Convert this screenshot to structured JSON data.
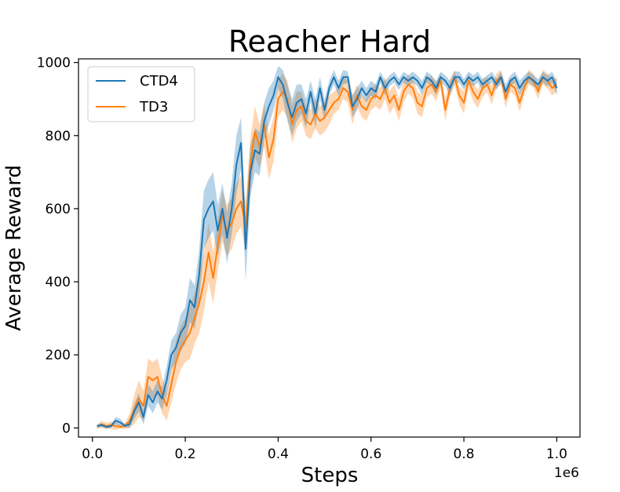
{
  "chart_data": {
    "type": "line",
    "title": "Reacher Hard",
    "xlabel": "Steps",
    "ylabel": "Average Reward",
    "x_offset_label": "1e6",
    "xlim": [
      -0.03,
      1.05
    ],
    "ylim": [
      -25,
      1010
    ],
    "x_ticks": [
      0.0,
      0.2,
      0.4,
      0.6,
      0.8,
      1.0
    ],
    "x_tick_labels": [
      "0.0",
      "0.2",
      "0.4",
      "0.6",
      "0.8",
      "1.0"
    ],
    "y_ticks": [
      0,
      200,
      400,
      600,
      800,
      1000
    ],
    "y_tick_labels": [
      "0",
      "200",
      "400",
      "600",
      "800",
      "1000"
    ],
    "grid": false,
    "legend_position": "top-left",
    "x": [
      0.01,
      0.02,
      0.03,
      0.04,
      0.05,
      0.06,
      0.07,
      0.08,
      0.09,
      0.1,
      0.11,
      0.12,
      0.13,
      0.14,
      0.15,
      0.16,
      0.17,
      0.18,
      0.19,
      0.2,
      0.21,
      0.22,
      0.23,
      0.24,
      0.25,
      0.26,
      0.27,
      0.28,
      0.29,
      0.3,
      0.31,
      0.32,
      0.33,
      0.34,
      0.35,
      0.36,
      0.37,
      0.38,
      0.39,
      0.4,
      0.41,
      0.42,
      0.43,
      0.44,
      0.45,
      0.46,
      0.47,
      0.48,
      0.49,
      0.5,
      0.51,
      0.52,
      0.53,
      0.54,
      0.55,
      0.56,
      0.57,
      0.58,
      0.59,
      0.6,
      0.61,
      0.62,
      0.63,
      0.64,
      0.65,
      0.66,
      0.67,
      0.68,
      0.69,
      0.7,
      0.71,
      0.72,
      0.73,
      0.74,
      0.75,
      0.76,
      0.77,
      0.78,
      0.79,
      0.8,
      0.81,
      0.82,
      0.83,
      0.84,
      0.85,
      0.86,
      0.87,
      0.88,
      0.89,
      0.9,
      0.91,
      0.92,
      0.93,
      0.94,
      0.95,
      0.96,
      0.97,
      0.98,
      0.99,
      1.0
    ],
    "series": [
      {
        "name": "CTD4",
        "color": "#1f77b4",
        "values": [
          5,
          8,
          3,
          5,
          20,
          15,
          6,
          10,
          45,
          70,
          30,
          90,
          70,
          100,
          80,
          130,
          200,
          220,
          260,
          280,
          350,
          330,
          420,
          570,
          600,
          620,
          540,
          600,
          520,
          600,
          720,
          780,
          490,
          700,
          760,
          750,
          840,
          880,
          910,
          960,
          940,
          890,
          850,
          890,
          900,
          860,
          920,
          860,
          930,
          870,
          930,
          960,
          930,
          960,
          960,
          880,
          900,
          930,
          910,
          930,
          920,
          960,
          930,
          950,
          960,
          940,
          960,
          950,
          960,
          950,
          930,
          960,
          950,
          930,
          960,
          950,
          930,
          960,
          960,
          940,
          960,
          950,
          960,
          940,
          950,
          960,
          940,
          960,
          920,
          950,
          960,
          930,
          950,
          960,
          950,
          940,
          960,
          950,
          960,
          930
        ],
        "band": [
          5,
          5,
          5,
          5,
          10,
          10,
          5,
          10,
          20,
          25,
          20,
          30,
          30,
          30,
          30,
          40,
          40,
          40,
          50,
          50,
          60,
          60,
          70,
          80,
          80,
          80,
          70,
          70,
          70,
          70,
          80,
          70,
          90,
          70,
          60,
          60,
          50,
          50,
          40,
          30,
          40,
          50,
          50,
          50,
          40,
          40,
          30,
          40,
          30,
          30,
          20,
          20,
          20,
          20,
          15,
          30,
          30,
          20,
          20,
          20,
          20,
          15,
          20,
          15,
          15,
          15,
          15,
          15,
          15,
          15,
          20,
          15,
          15,
          20,
          15,
          15,
          20,
          15,
          15,
          15,
          15,
          15,
          15,
          15,
          15,
          15,
          15,
          15,
          20,
          15,
          15,
          20,
          15,
          15,
          15,
          15,
          15,
          15,
          15,
          20
        ]
      },
      {
        "name": "TD3",
        "color": "#ff7f0e",
        "values": [
          3,
          10,
          5,
          8,
          5,
          3,
          5,
          20,
          50,
          80,
          60,
          140,
          130,
          140,
          90,
          60,
          120,
          180,
          220,
          240,
          260,
          300,
          340,
          400,
          480,
          410,
          500,
          580,
          540,
          560,
          600,
          620,
          550,
          720,
          810,
          770,
          830,
          740,
          790,
          900,
          920,
          900,
          830,
          870,
          880,
          840,
          830,
          860,
          840,
          850,
          870,
          890,
          900,
          930,
          920,
          870,
          910,
          880,
          870,
          900,
          910,
          900,
          930,
          890,
          910,
          870,
          920,
          940,
          930,
          890,
          880,
          930,
          940,
          920,
          950,
          870,
          930,
          960,
          910,
          890,
          950,
          920,
          900,
          930,
          940,
          910,
          950,
          960,
          900,
          940,
          930,
          890,
          930,
          960,
          950,
          920,
          960,
          950,
          930,
          940
        ],
        "band": [
          5,
          10,
          8,
          10,
          10,
          5,
          8,
          20,
          40,
          50,
          40,
          50,
          50,
          50,
          50,
          40,
          50,
          60,
          60,
          60,
          70,
          70,
          80,
          80,
          80,
          70,
          70,
          70,
          70,
          70,
          70,
          70,
          70,
          70,
          70,
          60,
          60,
          60,
          60,
          50,
          50,
          50,
          50,
          50,
          40,
          40,
          40,
          40,
          40,
          40,
          40,
          30,
          30,
          30,
          30,
          40,
          30,
          30,
          30,
          30,
          30,
          30,
          30,
          30,
          30,
          30,
          30,
          25,
          25,
          30,
          30,
          25,
          25,
          25,
          20,
          30,
          25,
          20,
          25,
          30,
          20,
          25,
          25,
          25,
          20,
          25,
          20,
          20,
          25,
          20,
          20,
          25,
          20,
          20,
          20,
          20,
          20,
          20,
          20,
          20
        ]
      }
    ]
  }
}
